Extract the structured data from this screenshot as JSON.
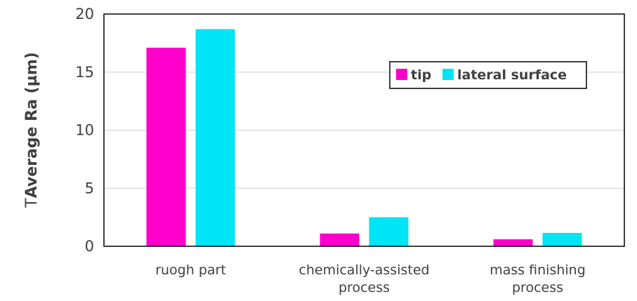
{
  "chart_data": {
    "type": "bar",
    "categories": [
      [
        "ruogh part"
      ],
      [
        "chemically-assisted",
        "process"
      ],
      [
        "mass finishing",
        "process"
      ]
    ],
    "series": [
      {
        "name": "tip",
        "values": [
          17.1,
          1.1,
          0.6
        ],
        "color": "#FF00CC"
      },
      {
        "name": "lateral surface",
        "values": [
          18.7,
          2.5,
          1.15
        ],
        "color": "#00E5F5"
      }
    ],
    "ylabel_prefix": "T",
    "ylabel": "Average Ra (µm)",
    "ylim": [
      0,
      20
    ],
    "yticks": [
      0,
      5,
      10,
      15,
      20
    ],
    "grid": true,
    "legend_position": "right"
  }
}
